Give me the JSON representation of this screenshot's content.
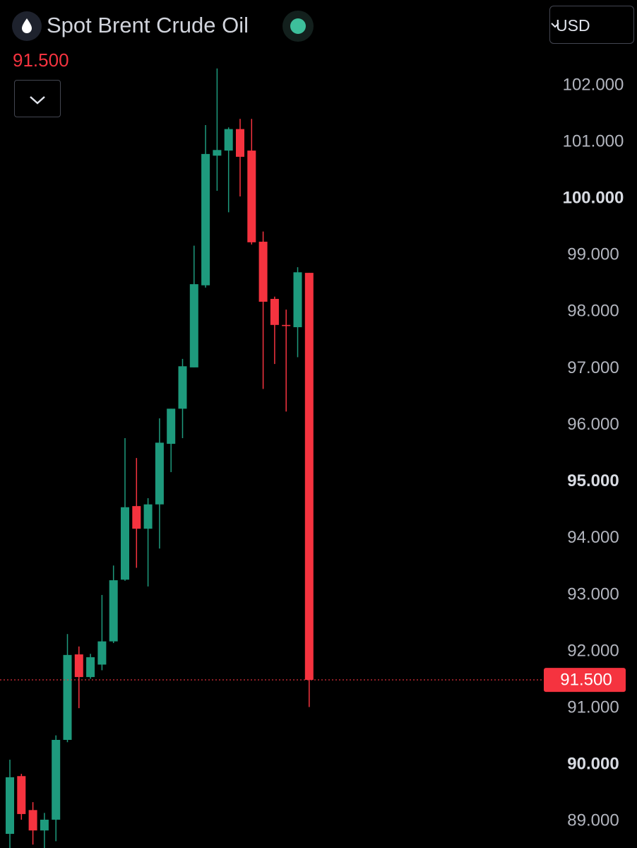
{
  "chart_data": {
    "type": "candlestick",
    "title": "Spot Brent Crude Oil",
    "currency": "USD",
    "last_price": {
      "value": 91.5,
      "label": "91.500"
    },
    "up_color": "#1e9a7d",
    "down_color": "#f5333f",
    "grid": false,
    "ylim": [
      88.53,
      103.51
    ],
    "yticks": [
      {
        "value": 89,
        "label": "89.000"
      },
      {
        "value": 90,
        "label": "90.000",
        "bold": true
      },
      {
        "value": 91,
        "label": "91.000"
      },
      {
        "value": 92,
        "label": "92.000"
      },
      {
        "value": 93,
        "label": "93.000"
      },
      {
        "value": 94,
        "label": "94.000"
      },
      {
        "value": 95,
        "label": "95.000",
        "bold": true
      },
      {
        "value": 96,
        "label": "96.000"
      },
      {
        "value": 97,
        "label": "97.000"
      },
      {
        "value": 98,
        "label": "98.000"
      },
      {
        "value": 99,
        "label": "99.000"
      },
      {
        "value": 100,
        "label": "100.000",
        "bold": true
      },
      {
        "value": 101,
        "label": "101.000"
      },
      {
        "value": 102,
        "label": "102.000"
      }
    ],
    "open": [
      88.78,
      89.8,
      89.2,
      88.84,
      89.03,
      90.44,
      91.95,
      91.55,
      91.77,
      92.18,
      93.27,
      94.57,
      94.17,
      94.6,
      95.67,
      96.29,
      97.02,
      98.47,
      100.76,
      100.85,
      101.23,
      100.85,
      99.24,
      98.23,
      97.77,
      97.73,
      98.69
    ],
    "high": [
      90.09,
      89.84,
      89.34,
      89.15,
      90.52,
      92.31,
      92.09,
      91.96,
      93.0,
      93.52,
      95.77,
      95.42,
      94.71,
      96.12,
      96.29,
      97.17,
      99.17,
      101.3,
      102.3,
      101.26,
      101.41,
      101.41,
      99.42,
      98.27,
      98.04,
      98.79,
      98.69
    ],
    "low": [
      88.53,
      89.03,
      88.59,
      88.53,
      88.65,
      90.4,
      91.0,
      91.52,
      91.67,
      92.15,
      93.25,
      93.48,
      93.15,
      93.82,
      95.17,
      95.77,
      97.02,
      98.43,
      100.14,
      99.76,
      100.04,
      99.19,
      96.64,
      97.08,
      96.24,
      97.2,
      91.02
    ],
    "close": [
      89.78,
      89.13,
      88.84,
      89.03,
      90.44,
      91.94,
      91.55,
      91.9,
      92.18,
      93.26,
      94.55,
      94.17,
      94.6,
      95.69,
      96.29,
      97.04,
      98.49,
      100.79,
      100.86,
      101.23,
      100.74,
      99.23,
      98.18,
      97.77,
      97.75,
      98.7,
      91.5
    ]
  }
}
